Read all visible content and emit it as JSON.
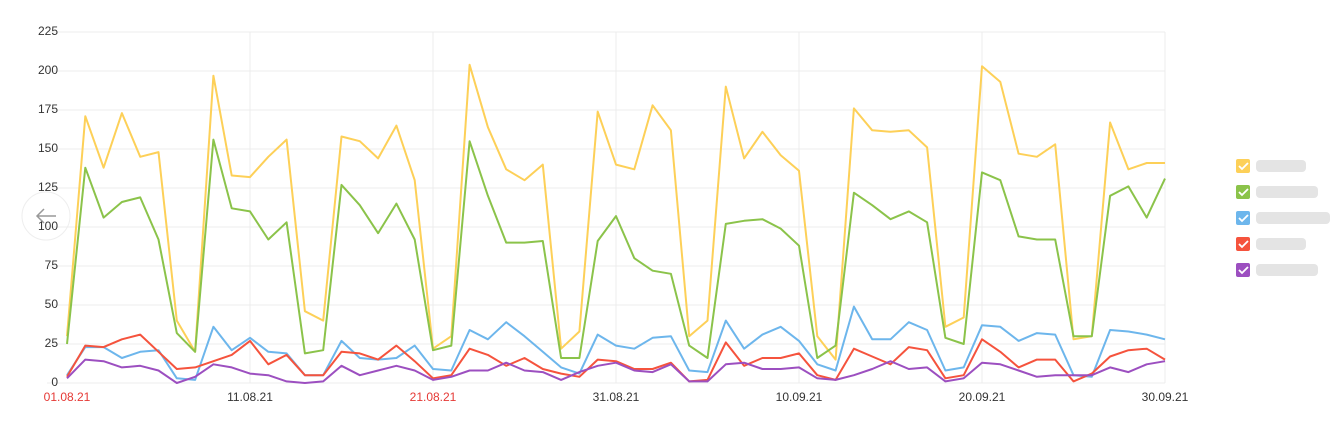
{
  "chart_data": {
    "type": "line",
    "categories": [
      "01.08.21",
      null,
      null,
      null,
      null,
      null,
      null,
      null,
      null,
      null,
      "11.08.21",
      null,
      null,
      null,
      null,
      null,
      null,
      null,
      null,
      null,
      "21.08.21",
      null,
      null,
      null,
      null,
      null,
      null,
      null,
      null,
      null,
      "31.08.21",
      null,
      null,
      null,
      null,
      null,
      null,
      null,
      null,
      null,
      "10.09.21",
      null,
      null,
      null,
      null,
      null,
      null,
      null,
      null,
      null,
      "20.09.21",
      null,
      null,
      null,
      null,
      null,
      null,
      null,
      null,
      null,
      "30.09.21"
    ],
    "series": [
      {
        "color": "#fdd058",
        "values": [
          30,
          171,
          138,
          173,
          145,
          148,
          40,
          20,
          197,
          133,
          132,
          145,
          156,
          46,
          40,
          158,
          155,
          144,
          165,
          130,
          22,
          30,
          204,
          164,
          137,
          130,
          140,
          22,
          33,
          174,
          140,
          137,
          178,
          162,
          30,
          40,
          190,
          144,
          161,
          146,
          136,
          30,
          15,
          176,
          162,
          161,
          162,
          151,
          36,
          42,
          203,
          193,
          147,
          145,
          153,
          28,
          30,
          167,
          137,
          141,
          141
        ]
      },
      {
        "color": "#8bc34a",
        "values": [
          25,
          138,
          106,
          116,
          119,
          92,
          32,
          20,
          156,
          112,
          110,
          92,
          103,
          19,
          21,
          127,
          114,
          96,
          115,
          92,
          21,
          24,
          155,
          120,
          90,
          90,
          91,
          16,
          16,
          91,
          107,
          80,
          72,
          70,
          24,
          16,
          102,
          104,
          105,
          99,
          88,
          16,
          24,
          122,
          114,
          105,
          110,
          103,
          29,
          25,
          135,
          130,
          94,
          92,
          92,
          30,
          30,
          120,
          126,
          106,
          131
        ]
      },
      {
        "color": "#6db6ec",
        "values": [
          5,
          23,
          23,
          16,
          20,
          21,
          3,
          2,
          36,
          21,
          29,
          20,
          19,
          5,
          5,
          27,
          16,
          15,
          16,
          24,
          9,
          8,
          34,
          28,
          39,
          30,
          20,
          10,
          6,
          31,
          24,
          22,
          29,
          30,
          8,
          7,
          40,
          22,
          31,
          36,
          27,
          12,
          8,
          49,
          28,
          28,
          39,
          34,
          8,
          10,
          37,
          36,
          27,
          32,
          31,
          5,
          4,
          34,
          33,
          31,
          28
        ]
      },
      {
        "color": "#f5533d",
        "values": [
          4,
          24,
          23,
          28,
          31,
          20,
          9,
          10,
          14,
          18,
          27,
          12,
          18,
          5,
          5,
          20,
          19,
          15,
          24,
          14,
          3,
          5,
          22,
          18,
          11,
          16,
          9,
          6,
          4,
          15,
          14,
          9,
          9,
          13,
          1,
          2,
          26,
          11,
          16,
          16,
          19,
          5,
          2,
          22,
          17,
          12,
          23,
          21,
          3,
          5,
          28,
          20,
          10,
          15,
          15,
          1,
          6,
          17,
          21,
          22,
          15
        ]
      },
      {
        "color": "#9c4fc0",
        "values": [
          3,
          15,
          14,
          10,
          11,
          8,
          0,
          4,
          12,
          10,
          6,
          5,
          1,
          0,
          1,
          11,
          5,
          8,
          11,
          8,
          2,
          4,
          8,
          8,
          13,
          8,
          7,
          2,
          7,
          11,
          13,
          8,
          7,
          12,
          1,
          1,
          12,
          13,
          9,
          9,
          10,
          3,
          2,
          5,
          9,
          14,
          9,
          10,
          1,
          3,
          13,
          12,
          8,
          4,
          5,
          5,
          5,
          10,
          7,
          12,
          14
        ]
      }
    ],
    "ylim": [
      0,
      225
    ],
    "yticks": [
      0,
      25,
      50,
      75,
      100,
      125,
      150,
      175,
      200,
      225
    ],
    "grid": true,
    "weekend_label_color": "#e53935"
  }
}
